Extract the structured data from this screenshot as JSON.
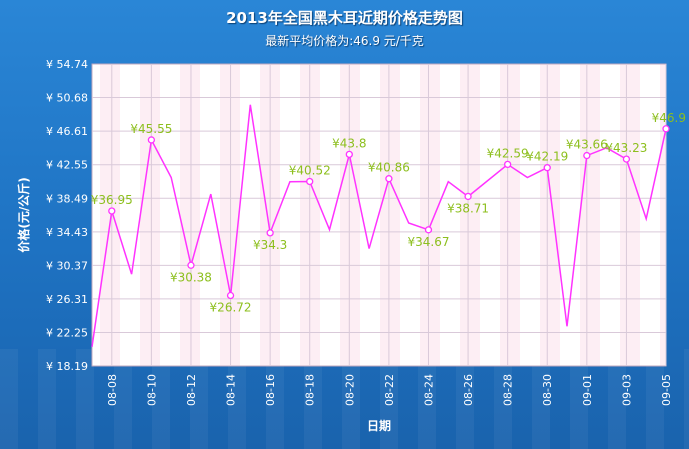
{
  "header": {
    "title": "2013年全国黑木耳近期价格走势图",
    "subtitle": "最新平均价格为:46.9 元/千克"
  },
  "colors": {
    "background": "#1e72c2",
    "plot_bg": "#ffffff",
    "plot_bg_alt": "#fdeef4",
    "line": "#ff33ff",
    "label": "#8dbf1e",
    "grid": "#d9c9d9"
  },
  "chart_data": {
    "type": "line",
    "title": "2013年全国黑木耳近期价格走势图",
    "subtitle": "最新平均价格为:46.9 元/千克",
    "xlabel": "日期",
    "ylabel": "价格(元/公斤)",
    "currency_prefix": "¥",
    "ylim": [
      18.19,
      54.74
    ],
    "yticks": [
      "18.19",
      "22.25",
      "26.31",
      "30.37",
      "34.43",
      "38.49",
      "42.55",
      "46.61",
      "50.68",
      "54.74"
    ],
    "x_labels": [
      "08-08",
      "08-10",
      "08-12",
      "08-14",
      "08-16",
      "08-18",
      "08-20",
      "08-22",
      "08-24",
      "08-26",
      "08-28",
      "08-30",
      "09-01",
      "09-03",
      "09-05"
    ],
    "x_positions": [
      "08-07",
      "08-08",
      "08-09",
      "08-10",
      "08-11",
      "08-12",
      "08-13",
      "08-14",
      "08-15",
      "08-16",
      "08-17",
      "08-18",
      "08-19",
      "08-20",
      "08-21",
      "08-22",
      "08-23",
      "08-24",
      "08-25",
      "08-26",
      "08-28",
      "08-29",
      "08-30",
      "08-31",
      "09-01",
      "09-02",
      "09-03",
      "09-04",
      "09-05"
    ],
    "values": [
      20.5,
      36.95,
      29.3,
      45.55,
      41.0,
      30.38,
      39.0,
      26.72,
      49.8,
      34.3,
      40.5,
      40.52,
      34.7,
      43.8,
      32.4,
      40.86,
      35.5,
      34.67,
      40.5,
      38.71,
      42.59,
      41.0,
      42.19,
      23.0,
      43.66,
      44.6,
      43.23,
      36.0,
      46.9
    ],
    "labeled_indices": [
      1,
      3,
      5,
      7,
      9,
      11,
      13,
      15,
      17,
      19,
      20,
      22,
      24,
      26,
      28
    ],
    "grid": true,
    "legend": "none"
  }
}
